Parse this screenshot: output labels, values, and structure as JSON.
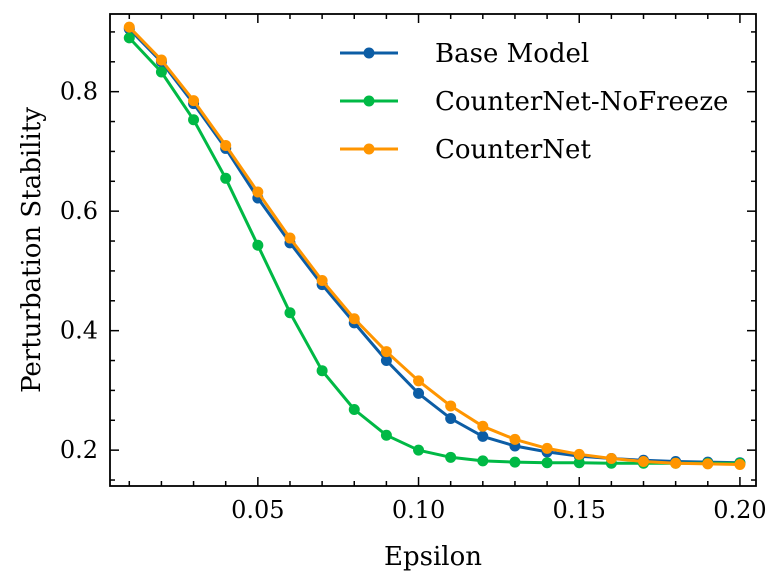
{
  "chart_data": {
    "type": "line",
    "title": "",
    "xlabel": "Epsilon",
    "ylabel": "Perturbation Stability",
    "xlim": [
      0.004,
      0.205
    ],
    "ylim": [
      0.14,
      0.93
    ],
    "xticks": [
      0.05,
      0.1,
      0.15,
      0.2
    ],
    "xtick_labels": [
      "0.05",
      "0.10",
      "0.15",
      "0.20"
    ],
    "yticks": [
      0.2,
      0.4,
      0.6,
      0.8
    ],
    "ytick_labels": [
      "0.2",
      "0.4",
      "0.6",
      "0.8"
    ],
    "grid": false,
    "legend_position": "top-right",
    "x": [
      0.01,
      0.02,
      0.03,
      0.04,
      0.05,
      0.06,
      0.07,
      0.08,
      0.09,
      0.1,
      0.11,
      0.12,
      0.13,
      0.14,
      0.15,
      0.16,
      0.17,
      0.18,
      0.19,
      0.2
    ],
    "series": [
      {
        "name": "Base Model",
        "color": "#0C5DA5",
        "values": [
          0.905,
          0.85,
          0.78,
          0.705,
          0.622,
          0.547,
          0.477,
          0.413,
          0.35,
          0.295,
          0.253,
          0.223,
          0.207,
          0.197,
          0.19,
          0.186,
          0.183,
          0.181,
          0.18,
          0.179
        ]
      },
      {
        "name": "CounterNet-NoFreeze",
        "color": "#00B945",
        "values": [
          0.89,
          0.833,
          0.753,
          0.655,
          0.543,
          0.43,
          0.333,
          0.268,
          0.225,
          0.2,
          0.188,
          0.182,
          0.18,
          0.179,
          0.179,
          0.178,
          0.178,
          0.178,
          0.178,
          0.178
        ]
      },
      {
        "name": "CounterNet",
        "color": "#FF9500",
        "values": [
          0.908,
          0.853,
          0.785,
          0.71,
          0.632,
          0.555,
          0.484,
          0.42,
          0.365,
          0.316,
          0.274,
          0.24,
          0.218,
          0.203,
          0.193,
          0.186,
          0.181,
          0.178,
          0.177,
          0.176
        ]
      }
    ]
  }
}
